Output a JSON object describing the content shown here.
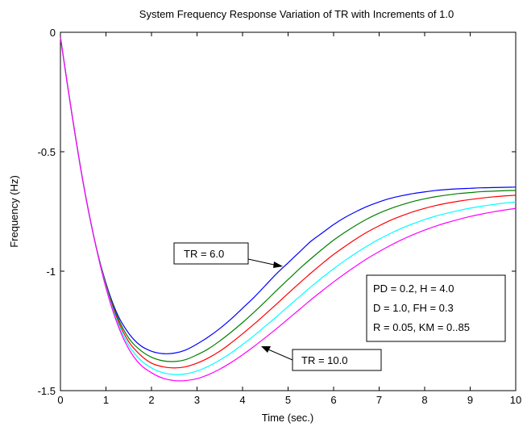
{
  "chart_data": {
    "type": "line",
    "title": "System Frequency Response Variation of TR with Increments of 1.0",
    "xlabel": "Time (sec.)",
    "ylabel": "Frequency (Hz)",
    "xlim": [
      0,
      10
    ],
    "ylim": [
      -1.5,
      0
    ],
    "xticks": [
      "0",
      "1",
      "2",
      "3",
      "4",
      "5",
      "6",
      "7",
      "8",
      "9",
      "10"
    ],
    "yticks": [
      "0",
      "-0.5",
      "-1",
      "-1.5"
    ],
    "grid": false,
    "x": [
      0,
      0.25,
      0.5,
      0.75,
      1,
      1.25,
      1.5,
      1.75,
      2,
      2.25,
      2.5,
      2.75,
      3,
      3.25,
      3.5,
      3.75,
      4,
      4.25,
      4.5,
      4.75,
      5,
      5.25,
      5.5,
      5.75,
      6,
      6.25,
      6.5,
      6.75,
      7,
      7.25,
      7.5,
      7.75,
      8,
      8.25,
      8.5,
      8.75,
      9,
      9.25,
      9.5,
      9.75,
      10
    ],
    "series": [
      {
        "color": "#0000ff",
        "values": [
          -0.02,
          -0.34,
          -0.63,
          -0.87,
          -1.05,
          -1.18,
          -1.26,
          -1.31,
          -1.335,
          -1.345,
          -1.343,
          -1.33,
          -1.305,
          -1.275,
          -1.24,
          -1.2,
          -1.155,
          -1.11,
          -1.06,
          -1.01,
          -0.965,
          -0.92,
          -0.875,
          -0.84,
          -0.805,
          -0.775,
          -0.75,
          -0.728,
          -0.71,
          -0.695,
          -0.684,
          -0.675,
          -0.668,
          -0.662,
          -0.658,
          -0.655,
          -0.653,
          -0.651,
          -0.65,
          -0.649,
          -0.648
        ]
      },
      {
        "color": "#008000",
        "values": [
          -0.02,
          -0.34,
          -0.63,
          -0.87,
          -1.055,
          -1.19,
          -1.28,
          -1.33,
          -1.36,
          -1.375,
          -1.378,
          -1.37,
          -1.35,
          -1.325,
          -1.292,
          -1.255,
          -1.215,
          -1.172,
          -1.127,
          -1.08,
          -1.035,
          -0.99,
          -0.948,
          -0.908,
          -0.87,
          -0.837,
          -0.807,
          -0.78,
          -0.757,
          -0.738,
          -0.722,
          -0.708,
          -0.697,
          -0.688,
          -0.681,
          -0.675,
          -0.671,
          -0.667,
          -0.665,
          -0.663,
          -0.662
        ]
      },
      {
        "color": "#ff0000",
        "values": [
          -0.02,
          -0.34,
          -0.63,
          -0.87,
          -1.06,
          -1.2,
          -1.295,
          -1.35,
          -1.385,
          -1.4,
          -1.405,
          -1.4,
          -1.385,
          -1.363,
          -1.335,
          -1.3,
          -1.262,
          -1.222,
          -1.18,
          -1.137,
          -1.093,
          -1.05,
          -1.008,
          -0.968,
          -0.93,
          -0.896,
          -0.864,
          -0.835,
          -0.81,
          -0.787,
          -0.768,
          -0.751,
          -0.737,
          -0.725,
          -0.715,
          -0.707,
          -0.7,
          -0.694,
          -0.689,
          -0.685,
          -0.682
        ]
      },
      {
        "color": "#00ffff",
        "values": [
          -0.02,
          -0.34,
          -0.63,
          -0.87,
          -1.065,
          -1.21,
          -1.31,
          -1.37,
          -1.405,
          -1.425,
          -1.432,
          -1.43,
          -1.418,
          -1.398,
          -1.372,
          -1.342,
          -1.307,
          -1.27,
          -1.23,
          -1.19,
          -1.148,
          -1.107,
          -1.066,
          -1.027,
          -0.99,
          -0.955,
          -0.923,
          -0.893,
          -0.866,
          -0.842,
          -0.82,
          -0.801,
          -0.784,
          -0.769,
          -0.757,
          -0.746,
          -0.736,
          -0.728,
          -0.721,
          -0.715,
          -0.71
        ]
      },
      {
        "color": "#ff00ff",
        "values": [
          -0.02,
          -0.34,
          -0.63,
          -0.87,
          -1.07,
          -1.22,
          -1.325,
          -1.39,
          -1.425,
          -1.448,
          -1.458,
          -1.458,
          -1.45,
          -1.433,
          -1.41,
          -1.382,
          -1.35,
          -1.315,
          -1.278,
          -1.24,
          -1.2,
          -1.16,
          -1.12,
          -1.082,
          -1.045,
          -1.01,
          -0.977,
          -0.946,
          -0.918,
          -0.892,
          -0.868,
          -0.847,
          -0.828,
          -0.811,
          -0.796,
          -0.783,
          -0.771,
          -0.761,
          -0.752,
          -0.744,
          -0.737
        ]
      }
    ],
    "annotations": [
      {
        "text": "TR = 6.0",
        "target_x": 4.85,
        "target_y": -0.99
      },
      {
        "text": "TR = 10.0",
        "target_x": 4.35,
        "target_y": -1.3
      }
    ],
    "params_box": {
      "lines": [
        "PD = 0.2, H = 4.0",
        "D = 1.0, FH = 0.3",
        "R = 0.05, KM = 0..85"
      ]
    }
  }
}
